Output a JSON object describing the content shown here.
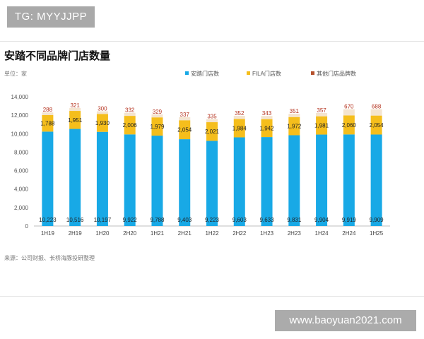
{
  "tag": "TG: MYYJJPP",
  "footer_url": "www.baoyuan2021.com",
  "chart_data": {
    "type": "bar",
    "stacked": true,
    "title": "安踏不同品牌门店数量",
    "unit_label": "单位：家",
    "source": "来源：公司财报、长桥海豚投研整理",
    "categories": [
      "1H19",
      "2H19",
      "1H20",
      "2H20",
      "1H21",
      "2H21",
      "1H22",
      "2H22",
      "1H23",
      "2H23",
      "1H24",
      "2H24",
      "1H25"
    ],
    "series": [
      {
        "name": "安踏门店数",
        "color": "#18a9e6",
        "values": [
          10223,
          10516,
          10197,
          9922,
          9788,
          9403,
          9223,
          9603,
          9633,
          9831,
          9904,
          9919,
          9909
        ],
        "labels": [
          "10,223",
          "10,516",
          "10,197",
          "9,922",
          "9,788",
          "9,403",
          "9,223",
          "9,603",
          "9,633",
          "9,831",
          "9,904",
          "9,919",
          "9,909"
        ]
      },
      {
        "name": "FILA门店数",
        "color": "#f5be1c",
        "values": [
          1788,
          1951,
          1930,
          2006,
          1979,
          2054,
          2021,
          1984,
          1942,
          1972,
          1981,
          2060,
          2054
        ],
        "labels": [
          "1,788",
          "1,951",
          "1,930",
          "2,006",
          "1,979",
          "2,054",
          "2,021",
          "1,984",
          "1,942",
          "1,972",
          "1,981",
          "2,060",
          "2,054"
        ]
      },
      {
        "name": "其他门店品牌数",
        "color": "#f4e4cf",
        "legend_color": "#b5522d",
        "values": [
          288,
          321,
          300,
          332,
          329,
          337,
          335,
          352,
          343,
          351,
          357,
          670,
          688
        ],
        "labels": [
          "288",
          "321",
          "300",
          "332",
          "329",
          "337",
          "335",
          "352",
          "343",
          "351",
          "357",
          "670",
          "688"
        ]
      }
    ],
    "yticks": [
      0,
      2000,
      4000,
      6000,
      8000,
      10000,
      12000,
      14000
    ],
    "ytick_labels": [
      "0",
      "2,000",
      "4,000",
      "6,000",
      "8,000",
      "10,000",
      "12,000",
      "14,000"
    ],
    "ylim": [
      0,
      14000
    ],
    "legend_position": "top",
    "grid": false
  }
}
